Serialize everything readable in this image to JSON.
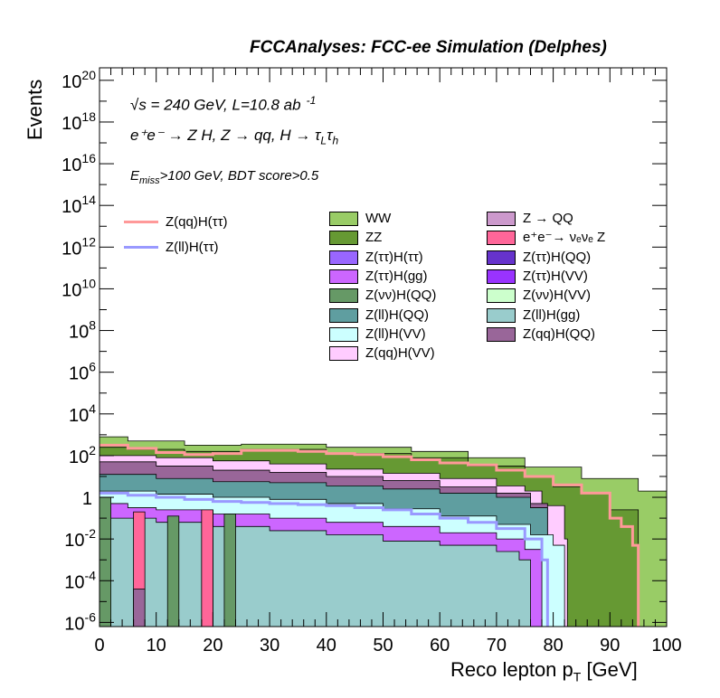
{
  "header": {
    "title": "FCCAnalyses: FCC-ee Simulation (Delphes)"
  },
  "annotations": {
    "energy": "√s = 240 GeV, L=10.8 ab",
    "energy_sup": "-1",
    "process": "e⁺e⁻ → Z H, Z → qq, H → τ",
    "process_sub1": "L",
    "process_tau2": "τ",
    "process_sub2": "h",
    "selection": "E",
    "selection_sub": "miss",
    "selection_rest": ">100 GeV, BDT score>0.5"
  },
  "chart_data": {
    "type": "area",
    "title": "FCCAnalyses: FCC-ee Simulation (Delphes)",
    "xlabel": "Reco lepton p",
    "xlabel_sub": "T",
    "xlabel_unit": " [GeV]",
    "ylabel": "Events",
    "xlim": [
      0,
      100
    ],
    "ylim_log10": [
      -6.2,
      20.6
    ],
    "y_scale": "log",
    "x_ticks": [
      "0",
      "10",
      "20",
      "30",
      "40",
      "50",
      "60",
      "70",
      "80",
      "90",
      "100"
    ],
    "y_ticks": [
      {
        "base": "10",
        "exp": "-6"
      },
      {
        "base": "10",
        "exp": "-4"
      },
      {
        "base": "10",
        "exp": "-2"
      },
      {
        "base": "1",
        "exp": ""
      },
      {
        "base": "10",
        "exp": "2"
      },
      {
        "base": "10",
        "exp": "4"
      },
      {
        "base": "10",
        "exp": "6"
      },
      {
        "base": "10",
        "exp": "8"
      },
      {
        "base": "10",
        "exp": "10"
      },
      {
        "base": "10",
        "exp": "12"
      },
      {
        "base": "10",
        "exp": "14"
      },
      {
        "base": "10",
        "exp": "16"
      },
      {
        "base": "10",
        "exp": "18"
      },
      {
        "base": "10",
        "exp": "20"
      }
    ],
    "legend_placement": "top-right",
    "stacked_boundaries": [
      {
        "name": "WW",
        "color": "#99cc66",
        "edges": [
          [
            0,
            2.9
          ],
          [
            5,
            2.7
          ],
          [
            15,
            2.5
          ],
          [
            25,
            2.55
          ],
          [
            40,
            2.4
          ],
          [
            55,
            2.2
          ],
          [
            65,
            1.9
          ],
          [
            75,
            1.45
          ],
          [
            85,
            0.9
          ],
          [
            95,
            0.3
          ],
          [
            100,
            0.2
          ]
        ]
      },
      {
        "name": "ZZ",
        "color": "#669933",
        "edges": [
          [
            0,
            2.4
          ],
          [
            5,
            2.3
          ],
          [
            15,
            2.2
          ],
          [
            25,
            2.3
          ],
          [
            40,
            2.1
          ],
          [
            55,
            1.9
          ],
          [
            65,
            1.5
          ],
          [
            75,
            1.0
          ],
          [
            80,
            0.5
          ],
          [
            85,
            0.2
          ],
          [
            90,
            -0.6
          ],
          [
            95,
            -6.2
          ]
        ]
      },
      {
        "name": "Z(qq)H(VV)",
        "color": "#ffccff",
        "edges": [
          [
            0,
            2.0
          ],
          [
            10,
            1.9
          ],
          [
            20,
            1.75
          ],
          [
            30,
            1.6
          ],
          [
            40,
            1.35
          ],
          [
            50,
            1.15
          ],
          [
            60,
            0.9
          ],
          [
            70,
            0.55
          ],
          [
            75,
            0.3
          ],
          [
            78,
            -0.4
          ],
          [
            82,
            -2.0
          ],
          [
            82.5,
            -6.2
          ]
        ]
      },
      {
        "name": "Z(qq)H(QQ)",
        "color": "#996699",
        "edges": [
          [
            0,
            1.7
          ],
          [
            10,
            1.5
          ],
          [
            20,
            1.3
          ],
          [
            30,
            1.2
          ],
          [
            40,
            1.0
          ],
          [
            50,
            0.8
          ],
          [
            60,
            0.5
          ],
          [
            70,
            0.2
          ],
          [
            76,
            -0.3
          ],
          [
            79,
            -6.2
          ]
        ]
      },
      {
        "name": "Z(ll)H(QQ)",
        "color": "#5f9ea0",
        "edges": [
          [
            0,
            1.1
          ],
          [
            10,
            0.9
          ],
          [
            20,
            0.75
          ],
          [
            30,
            0.7
          ],
          [
            40,
            0.55
          ],
          [
            50,
            0.4
          ],
          [
            60,
            0.2
          ],
          [
            70,
            0.0
          ],
          [
            76,
            -0.5
          ],
          [
            79,
            -6.2
          ]
        ]
      },
      {
        "name": "Z(ll)H(VV)",
        "color": "#ccffff",
        "edges": [
          [
            0,
            0.3
          ],
          [
            10,
            0.15
          ],
          [
            20,
            0.0
          ],
          [
            30,
            -0.1
          ],
          [
            40,
            -0.3
          ],
          [
            50,
            -0.55
          ],
          [
            60,
            -0.9
          ],
          [
            70,
            -1.3
          ],
          [
            76,
            -1.8
          ],
          [
            80,
            -2.3
          ],
          [
            82,
            -6.2
          ]
        ]
      },
      {
        "name": "Z(ττ)H(gg)",
        "color": "#cc66ff",
        "edges": [
          [
            0,
            -0.3
          ],
          [
            5,
            -0.5
          ],
          [
            10,
            -0.6
          ],
          [
            20,
            -0.8
          ],
          [
            30,
            -1.0
          ],
          [
            40,
            -1.2
          ],
          [
            50,
            -1.4
          ],
          [
            60,
            -1.7
          ],
          [
            70,
            -2.0
          ],
          [
            75,
            -2.5
          ],
          [
            78,
            -6.2
          ]
        ]
      },
      {
        "name": "Z(ll)H(gg)",
        "color": "#99cccc",
        "edges": [
          [
            0,
            -1.0
          ],
          [
            10,
            -1.2
          ],
          [
            20,
            -1.4
          ],
          [
            30,
            -1.6
          ],
          [
            40,
            -1.8
          ],
          [
            50,
            -2.1
          ],
          [
            60,
            -2.3
          ],
          [
            70,
            -2.6
          ],
          [
            74,
            -3.0
          ],
          [
            76,
            -6.2
          ]
        ]
      }
    ],
    "spikes": [
      {
        "name": "Z(νν)H(QQ)",
        "color": "#669966",
        "bins": [
          [
            0,
            2,
            0.0
          ],
          [
            12,
            14,
            -0.9
          ],
          [
            18,
            20,
            -0.7
          ],
          [
            22,
            24,
            -0.8
          ]
        ]
      },
      {
        "name": "e⁺e⁻→ νₑνₑ Z",
        "color": "#ff6699",
        "bins": [
          [
            6,
            8,
            -0.7
          ],
          [
            18,
            20,
            -0.6
          ]
        ]
      },
      {
        "name": "Z(qq)H(QQ)",
        "color": "#996699",
        "bins": [
          [
            6,
            8,
            -4.4
          ]
        ]
      }
    ],
    "series": [
      {
        "name": "Z(qq)H(ττ)",
        "color": "#ff9999",
        "x": [
          0,
          5,
          10,
          15,
          20,
          25,
          30,
          35,
          40,
          45,
          50,
          55,
          60,
          65,
          70,
          75,
          80,
          85,
          90,
          92,
          94,
          95
        ],
        "values": [
          2.5,
          2.35,
          2.15,
          2.05,
          2.1,
          2.25,
          2.25,
          2.2,
          2.1,
          2.05,
          1.95,
          1.8,
          1.65,
          1.55,
          1.3,
          1.0,
          0.6,
          0.2,
          -1.0,
          -1.4,
          -2.3,
          -6.2
        ]
      },
      {
        "name": "Z(ll)H(ττ)",
        "color": "#9999ff",
        "x": [
          0,
          5,
          10,
          15,
          20,
          25,
          30,
          35,
          40,
          45,
          50,
          55,
          60,
          65,
          70,
          75,
          78,
          79
        ],
        "values": [
          0.2,
          0.1,
          0.0,
          -0.1,
          -0.2,
          -0.25,
          -0.3,
          -0.35,
          -0.4,
          -0.5,
          -0.6,
          -0.8,
          -1.0,
          -1.2,
          -1.5,
          -2.0,
          -3.0,
          -6.2
        ]
      }
    ],
    "legend_lines": [
      {
        "name": "Z(qq)H(ττ)",
        "color": "#ff9999"
      },
      {
        "name": "Z(ll)H(ττ)",
        "color": "#9999ff"
      }
    ],
    "legend_fills": [
      {
        "name": "WW",
        "color": "#99cc66"
      },
      {
        "name": "Z → QQ",
        "color": "#cc99cc"
      },
      {
        "name": "ZZ",
        "color": "#669933"
      },
      {
        "name": "e⁺e⁻→ νₑνₑ Z",
        "color": "#ff6699"
      },
      {
        "name": "Z(ττ)H(ττ)",
        "color": "#9966ff"
      },
      {
        "name": "Z(ττ)H(QQ)",
        "color": "#6633cc"
      },
      {
        "name": "Z(ττ)H(gg)",
        "color": "#cc66ff"
      },
      {
        "name": "Z(ττ)H(VV)",
        "color": "#9933ff"
      },
      {
        "name": "Z(νν)H(QQ)",
        "color": "#669966"
      },
      {
        "name": "Z(νν)H(VV)",
        "color": "#ccffcc"
      },
      {
        "name": "Z(ll)H(QQ)",
        "color": "#5f9ea0"
      },
      {
        "name": "Z(ll)H(gg)",
        "color": "#99cccc"
      },
      {
        "name": "Z(ll)H(VV)",
        "color": "#ccffff"
      },
      {
        "name": "Z(qq)H(QQ)",
        "color": "#996699"
      },
      {
        "name": "Z(qq)H(VV)",
        "color": "#ffccff"
      }
    ]
  }
}
